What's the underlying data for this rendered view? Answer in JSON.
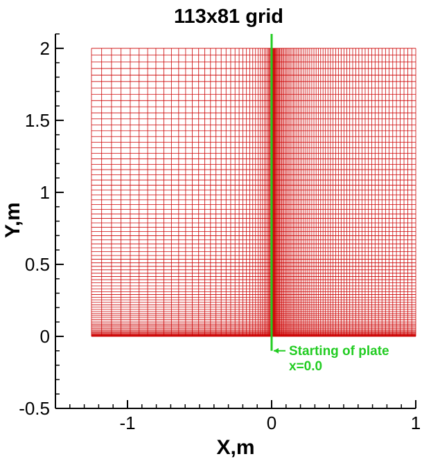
{
  "chart_data": {
    "type": "mesh",
    "title": "113x81 grid",
    "xlabel": "X,m",
    "ylabel": "Y,m",
    "xlim": [
      -1.5,
      1.0
    ],
    "ylim": [
      -0.5,
      2.1
    ],
    "xticks": [
      -1,
      0,
      1
    ],
    "xtick_labels": [
      "-1",
      "0",
      "1"
    ],
    "yticks": [
      -0.5,
      0,
      0.5,
      1,
      1.5,
      2
    ],
    "ytick_labels": [
      "-0.5",
      "0",
      "0.5",
      "1",
      "1.5",
      "2"
    ],
    "grid": {
      "name": "113x81 grid",
      "ni": 113,
      "nj": 81,
      "x_range": [
        -1.25,
        1.0
      ],
      "y_range": [
        0.0,
        2.0
      ],
      "x_clustering": "clustered toward x=0.0",
      "y_clustering": "clustered toward y=0.0",
      "color": "#cc0000"
    },
    "plate_start": {
      "x": 0.0,
      "y_range": [
        -0.1,
        2.1
      ],
      "color": "#22cc22",
      "annotation_lines": [
        "Starting of plate",
        "x=0.0"
      ]
    }
  }
}
